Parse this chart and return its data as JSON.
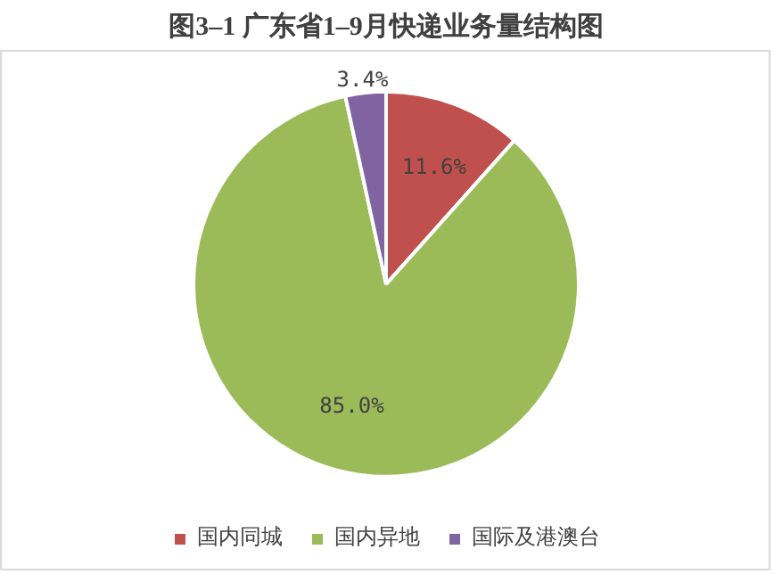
{
  "chart_data": {
    "type": "pie",
    "title": "图3–1 广东省1–9月快递业务量结构图",
    "categories": [
      "国内同城",
      "国内异地",
      "国际及港澳台"
    ],
    "values": [
      11.6,
      85.0,
      3.4
    ],
    "colors": [
      "#c0504d",
      "#9bbb59",
      "#8064a2"
    ],
    "value_labels": [
      "11.6%",
      "85.0%",
      "3.4%"
    ],
    "legend": "bottom"
  }
}
